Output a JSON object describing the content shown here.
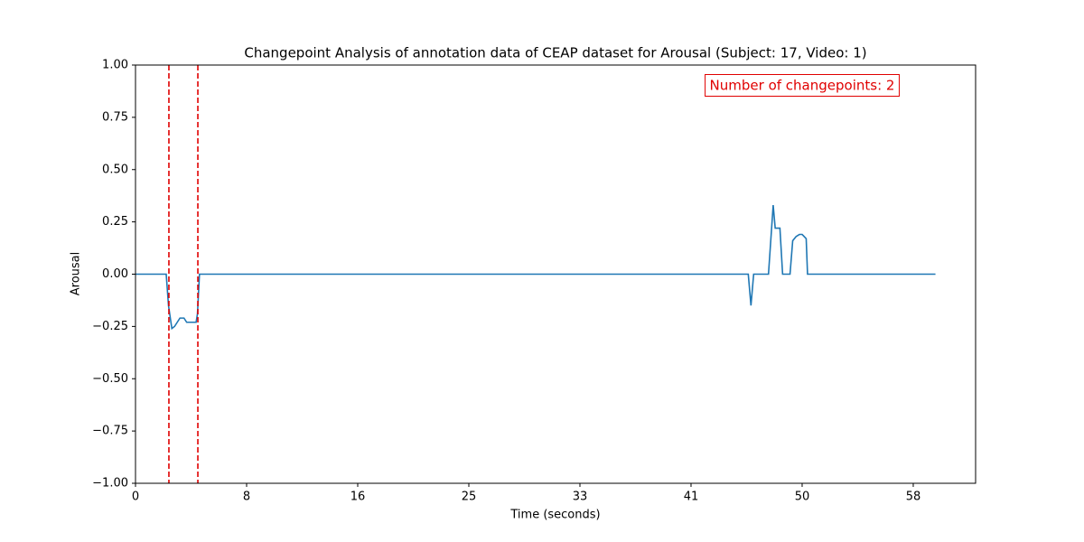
{
  "chart_data": {
    "type": "line",
    "title": "Changepoint Analysis of annotation data of CEAP dataset for Arousal (Subject: 17, Video: 1)",
    "x_label": "Time (seconds)",
    "y_label": "Arousal",
    "annotation": "Number of changepoints: 2",
    "annotation_color": "#e00000",
    "x": [
      0,
      2.28,
      2.45,
      2.7,
      2.9,
      3.3,
      3.6,
      3.8,
      4.5,
      4.6,
      4.75,
      45.5,
      45.7,
      45.9,
      47.0,
      47.35,
      47.5,
      47.85,
      48.05,
      48.6,
      48.8,
      49.05,
      49.3,
      49.5,
      49.8,
      49.9,
      59.4
    ],
    "series": [
      {
        "color": "#1f77b4",
        "values": [
          0,
          0,
          -0.15,
          -0.26,
          -0.25,
          -0.21,
          -0.21,
          -0.23,
          -0.23,
          -0.19,
          0,
          0,
          -0.15,
          0,
          0,
          0.33,
          0.22,
          0.22,
          0,
          0,
          0.16,
          0.18,
          0.19,
          0.19,
          0.17,
          0,
          0
        ]
      }
    ],
    "changepoints": [
      2.48,
      4.63
    ],
    "changepoint_color": "#e00000",
    "xlim": [
      0,
      62.38
    ],
    "ylim": [
      -1,
      1
    ],
    "xticks": [
      0,
      {
        "value": 8.25,
        "label": "8"
      },
      {
        "value": 16.5,
        "label": "16"
      },
      {
        "value": 24.75,
        "label": "25"
      },
      {
        "value": 33,
        "label": "33"
      },
      {
        "value": 41.25,
        "label": "41"
      },
      {
        "value": 49.5,
        "label": "50"
      },
      {
        "value": 57.75,
        "label": "58"
      }
    ],
    "yticks": [
      {
        "value": -1,
        "label": "−1.00"
      },
      {
        "value": -0.75,
        "label": "−0.75"
      },
      {
        "value": -0.5,
        "label": "−0.50"
      },
      {
        "value": -0.25,
        "label": "−0.25"
      },
      {
        "value": 0,
        "label": "0.00"
      },
      {
        "value": 0.25,
        "label": "0.25"
      },
      {
        "value": 0.5,
        "label": "0.50"
      },
      {
        "value": 0.75,
        "label": "0.75"
      },
      {
        "value": 1,
        "label": "1.00"
      }
    ],
    "grid": false
  }
}
